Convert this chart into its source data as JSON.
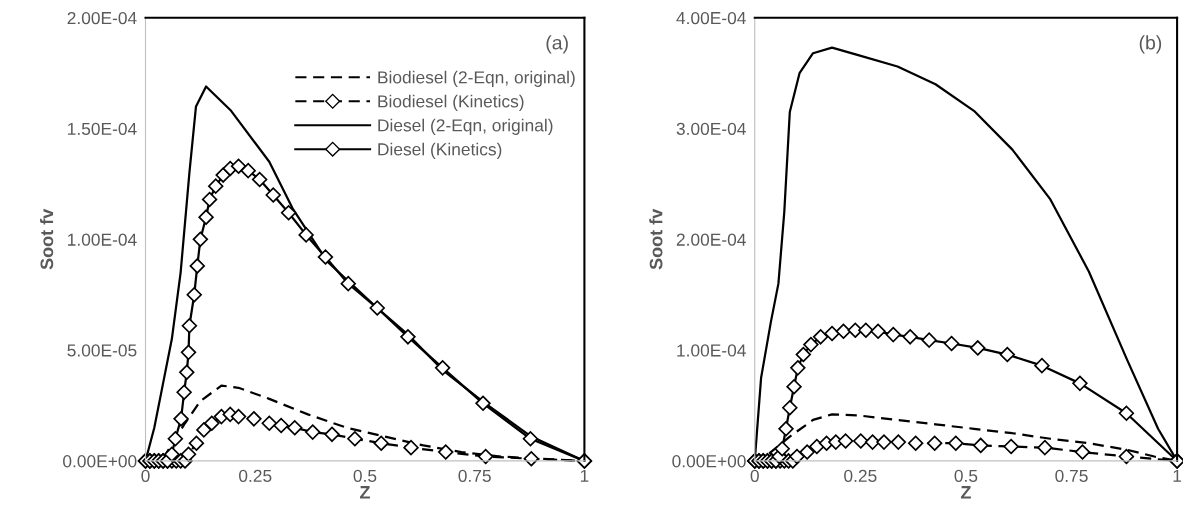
{
  "chart_data": [
    {
      "type": "line",
      "xlabel": "Z",
      "ylabel": "Soot fv",
      "annotations": [
        "(a)"
      ],
      "legend": "top right",
      "xlim": [
        0,
        1
      ],
      "ylim": [
        0,
        0.0002
      ],
      "xticks": [
        0,
        0.25,
        0.5,
        0.75,
        1
      ],
      "yticks": [
        {
          "value": 0,
          "label": "0.00E+00"
        },
        {
          "value": 5e-05,
          "label": "5.00E-05"
        },
        {
          "value": 0.0001,
          "label": "1.00E-04"
        },
        {
          "value": 0.00015,
          "label": "1.50E-04"
        },
        {
          "value": 0.0002,
          "label": "2.00E-04"
        }
      ],
      "series": [
        {
          "name": "Biodiesel (2-Eqn, original)",
          "color": "#000000",
          "line_style": "dashed",
          "marker": "none",
          "x": [
            0,
            0.03,
            0.046,
            0.09,
            0.125,
            0.173,
            0.212,
            0.282,
            0.37,
            0.458,
            0.546,
            0.633,
            0.72,
            0.81,
            0.9,
            1
          ],
          "values": [
            0,
            0,
            3e-06,
            1.7e-05,
            2.7e-05,
            3.4e-05,
            3.3e-05,
            2.8e-05,
            2.1e-05,
            1.5e-05,
            1.1e-05,
            7e-06,
            4e-06,
            2e-06,
            1e-06,
            0
          ]
        },
        {
          "name": "Biodiesel (Kinetics)",
          "color": "#000000",
          "line_style": "dashed",
          "marker": "diamond",
          "x": [
            0,
            0.01,
            0.02,
            0.03,
            0.04,
            0.05,
            0.06,
            0.07,
            0.08,
            0.09,
            0.098,
            0.116,
            0.133,
            0.151,
            0.173,
            0.193,
            0.212,
            0.247,
            0.282,
            0.309,
            0.34,
            0.381,
            0.425,
            0.477,
            0.537,
            0.605,
            0.684,
            0.775,
            0.879,
            1
          ],
          "values": [
            0,
            0,
            0,
            0,
            0,
            0,
            0,
            0,
            0,
            0,
            3e-06,
            8e-06,
            1.4e-05,
            1.7e-05,
            2e-05,
            2.1e-05,
            2e-05,
            1.9e-05,
            1.7e-05,
            1.6e-05,
            1.5e-05,
            1.3e-05,
            1.2e-05,
            1e-05,
            8e-06,
            6e-06,
            4e-06,
            2e-06,
            1e-06,
            0
          ]
        },
        {
          "name": "Diesel (2-Eqn, original)",
          "color": "#000000",
          "line_style": "solid",
          "marker": "none",
          "x": [
            0,
            0.02,
            0.04,
            0.06,
            0.08,
            0.1,
            0.115,
            0.138,
            0.195,
            0.282,
            0.335,
            0.414,
            0.528,
            0.598,
            0.677,
            0.774,
            0.879,
            1
          ],
          "values": [
            0,
            1.5e-05,
            3.5e-05,
            5.5e-05,
            8.5e-05,
            0.00013,
            0.00016,
            0.000169,
            0.000158,
            0.000135,
            0.000114,
            9e-05,
            6.9e-05,
            5.7e-05,
            4.1e-05,
            2.6e-05,
            1.1e-05,
            0
          ]
        },
        {
          "name": "Diesel (Kinetics)",
          "color": "#000000",
          "line_style": "solid",
          "marker": "diamond",
          "x": [
            0,
            0.01,
            0.02,
            0.03,
            0.04,
            0.05,
            0.06,
            0.068,
            0.081,
            0.088,
            0.094,
            0.098,
            0.1,
            0.111,
            0.118,
            0.125,
            0.138,
            0.146,
            0.16,
            0.177,
            0.193,
            0.212,
            0.234,
            0.26,
            0.291,
            0.326,
            0.366,
            0.41,
            0.462,
            0.528,
            0.598,
            0.677,
            0.769,
            0.877,
            1
          ],
          "values": [
            0,
            0,
            0,
            0,
            0,
            0,
            3e-06,
            1e-05,
            1.9e-05,
            3.1e-05,
            4e-05,
            4.9e-05,
            6.1e-05,
            7.5e-05,
            8.8e-05,
            0.0001,
            0.00011,
            0.000118,
            0.000124,
            0.000129,
            0.000132,
            0.000133,
            0.000131,
            0.000127,
            0.00012,
            0.000112,
            0.000102,
            9.2e-05,
            8e-05,
            6.9e-05,
            5.6e-05,
            4.2e-05,
            2.6e-05,
            1e-05,
            0
          ]
        }
      ]
    },
    {
      "type": "line",
      "xlabel": "Z",
      "ylabel": "Soot fv",
      "annotations": [
        "(b)"
      ],
      "xlim": [
        0,
        1
      ],
      "ylim": [
        0,
        0.0004
      ],
      "xticks": [
        0,
        0.25,
        0.5,
        0.75,
        1
      ],
      "yticks": [
        {
          "value": 0,
          "label": "0.00E+00"
        },
        {
          "value": 0.0001,
          "label": "1.00E-04"
        },
        {
          "value": 0.0002,
          "label": "2.00E-04"
        },
        {
          "value": 0.0003,
          "label": "3.00E-04"
        },
        {
          "value": 0.0004,
          "label": "4.00E-04"
        }
      ],
      "series": [
        {
          "color": "#000000",
          "line_style": "dashed",
          "marker": "none",
          "x": [
            0,
            0.02,
            0.038,
            0.083,
            0.138,
            0.183,
            0.247,
            0.338,
            0.428,
            0.519,
            0.61,
            0.7,
            0.791,
            0.882,
            0.946,
            1
          ],
          "values": [
            0,
            0,
            8e-06,
            2.2e-05,
            3.7e-05,
            4.2e-05,
            4.1e-05,
            3.7e-05,
            3.3e-05,
            2.9e-05,
            2.5e-05,
            2e-05,
            1.6e-05,
            1e-05,
            4e-06,
            0
          ]
        },
        {
          "color": "#000000",
          "line_style": "dashed",
          "marker": "diamond",
          "x": [
            0,
            0.01,
            0.02,
            0.03,
            0.04,
            0.05,
            0.06,
            0.07,
            0.08,
            0.09,
            0.1,
            0.124,
            0.147,
            0.17,
            0.192,
            0.215,
            0.251,
            0.279,
            0.306,
            0.34,
            0.381,
            0.426,
            0.476,
            0.535,
            0.607,
            0.687,
            0.776,
            0.88,
            1
          ],
          "values": [
            0,
            0,
            0,
            0,
            0,
            0,
            0,
            0,
            0,
            0,
            4e-06,
            8e-06,
            1.3e-05,
            1.6e-05,
            1.7e-05,
            1.8e-05,
            1.8e-05,
            1.7e-05,
            1.7e-05,
            1.7e-05,
            1.6e-05,
            1.6e-05,
            1.6e-05,
            1.4e-05,
            1.3e-05,
            1.2e-05,
            8e-06,
            4e-06,
            0
          ]
        },
        {
          "color": "#000000",
          "line_style": "solid",
          "marker": "none",
          "x": [
            0,
            0.015,
            0.038,
            0.056,
            0.07,
            0.083,
            0.106,
            0.138,
            0.183,
            0.247,
            0.338,
            0.428,
            0.519,
            0.61,
            0.7,
            0.791,
            0.882,
            0.955,
            1
          ],
          "values": [
            0,
            7.5e-05,
            0.000125,
            0.00016,
            0.000225,
            0.000315,
            0.00035,
            0.000368,
            0.000373,
            0.000366,
            0.000356,
            0.00034,
            0.000316,
            0.000281,
            0.000236,
            0.000171,
            9.1e-05,
            2.9e-05,
            0
          ]
        },
        {
          "color": "#000000",
          "line_style": "solid",
          "marker": "diamond",
          "x": [
            0,
            0.01,
            0.02,
            0.03,
            0.04,
            0.05,
            0.058,
            0.065,
            0.074,
            0.083,
            0.093,
            0.102,
            0.115,
            0.133,
            0.156,
            0.183,
            0.21,
            0.238,
            0.263,
            0.292,
            0.328,
            0.368,
            0.413,
            0.466,
            0.528,
            0.598,
            0.68,
            0.77,
            0.88,
            1
          ],
          "values": [
            0,
            0,
            0,
            0,
            0,
            0,
            4e-06,
            1.1e-05,
            2.9e-05,
            4.8e-05,
            6.7e-05,
            8.4e-05,
            9.6e-05,
            0.000105,
            0.000112,
            0.000115,
            0.000117,
            0.000118,
            0.000118,
            0.000117,
            0.000114,
            0.000112,
            0.000109,
            0.000106,
            0.000102,
            9.6e-05,
            8.6e-05,
            7e-05,
            4.3e-05,
            0
          ]
        }
      ]
    }
  ]
}
